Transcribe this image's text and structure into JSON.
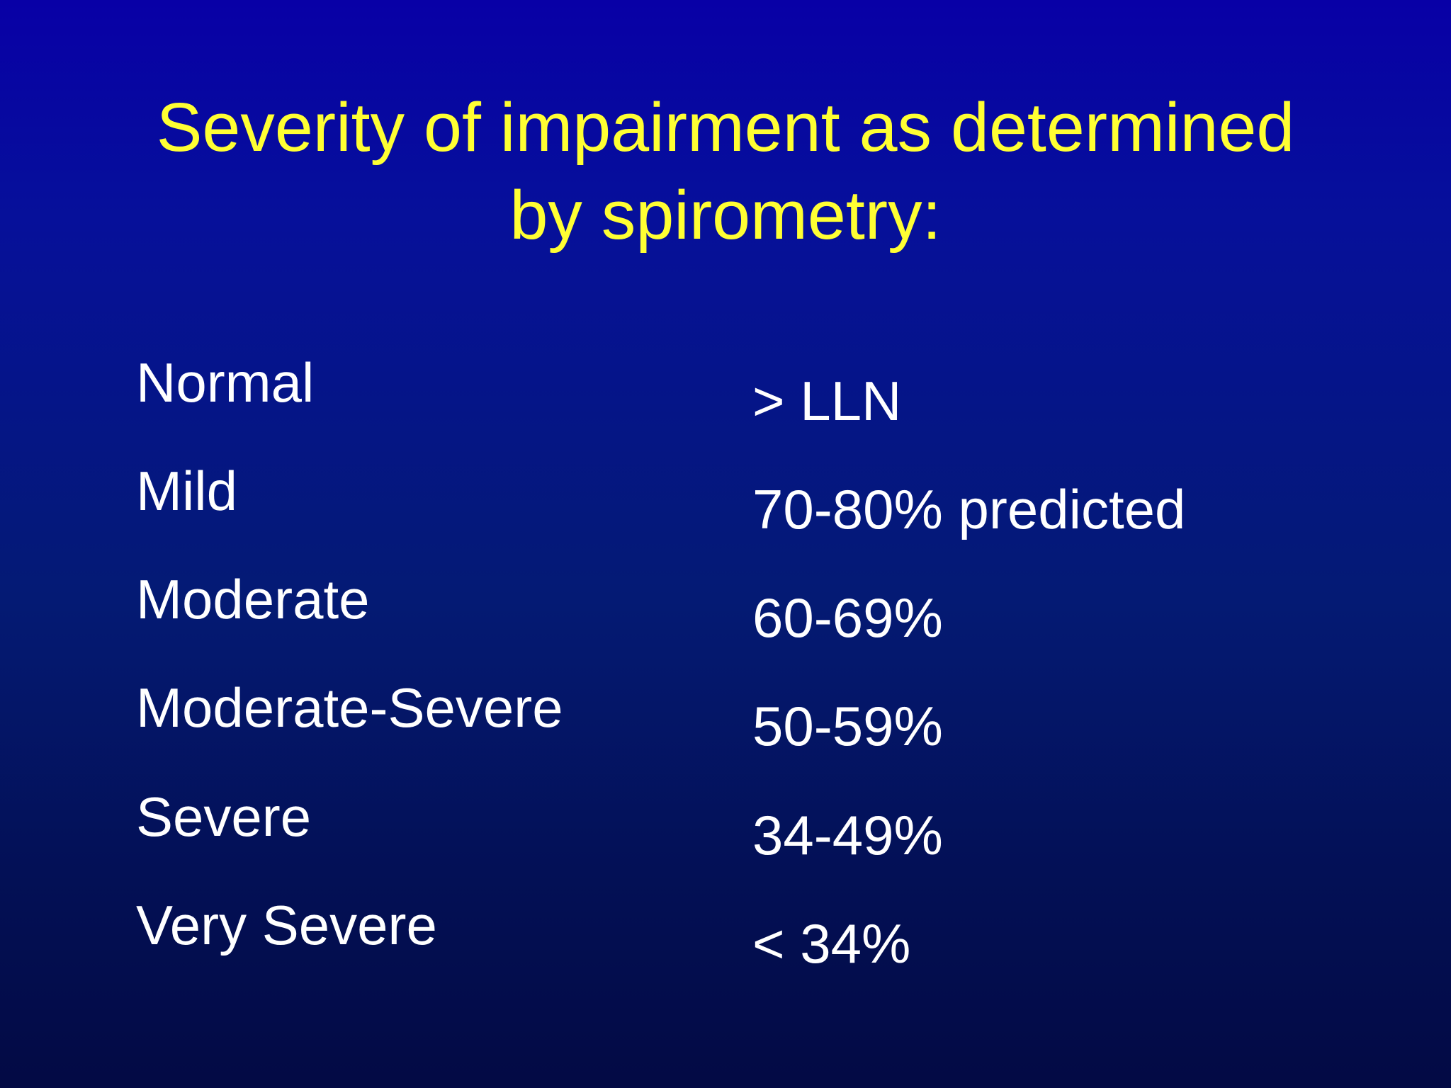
{
  "slide": {
    "title_line1": "Severity of impairment as determined",
    "title_line2": "by spirometry:",
    "rows": [
      {
        "label": "Normal",
        "value": "> LLN"
      },
      {
        "label": "Mild",
        "value": "70-80% predicted"
      },
      {
        "label": "Moderate",
        "value": "60-69%"
      },
      {
        "label": "Moderate-Severe",
        "value": "50-59%"
      },
      {
        "label": "Severe",
        "value": "34-49%"
      },
      {
        "label": "Very Severe",
        "value": "< 34%"
      }
    ]
  },
  "colors": {
    "background_top": "#0800a6",
    "background_bottom": "#030a44",
    "title": "#ffff33",
    "body_text": "#ffffff"
  }
}
